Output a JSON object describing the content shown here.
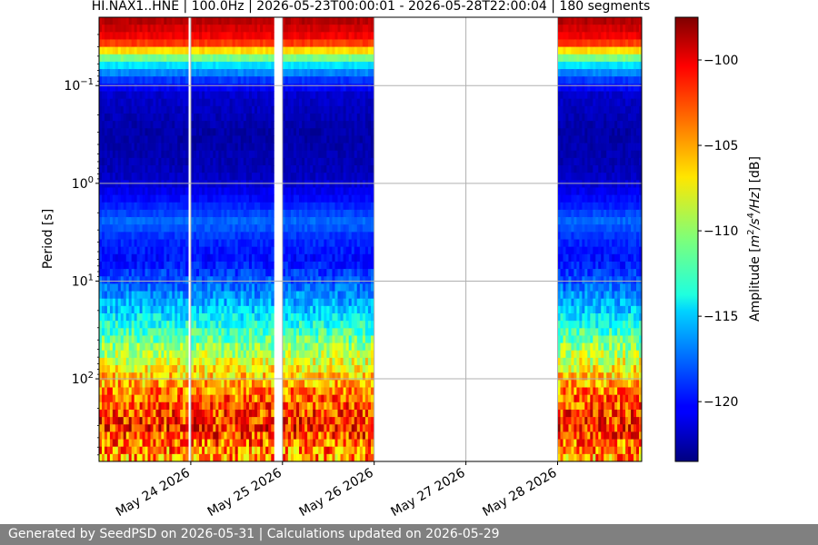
{
  "chart_data": {
    "type": "heatmap",
    "title": "HI.NAX1..HNE | 100.0Hz | 2026-05-23T00:00:01 - 2026-05-28T22:00:04 | 180 segments",
    "ylabel": "Period [s]",
    "colorbar_label_parts": [
      "Amplitude [",
      "m",
      "2",
      "/s",
      "4",
      "/",
      "Hz",
      "] [dB]"
    ],
    "x_start": "2026-05-23",
    "x_end": "2026-05-28T22:00:04",
    "xticks": [
      {
        "date": "2026-05-24",
        "label": "May 24 2026"
      },
      {
        "date": "2026-05-25",
        "label": "May 25 2026"
      },
      {
        "date": "2026-05-26",
        "label": "May 26 2026"
      },
      {
        "date": "2026-05-27",
        "label": "May 27 2026"
      },
      {
        "date": "2026-05-28",
        "label": "May 28 2026"
      }
    ],
    "y_scale": "log",
    "y_inverted": true,
    "ylim": [
      0.02,
      700
    ],
    "yticks": [
      {
        "value": 0.1,
        "base": "10",
        "exp": "−1"
      },
      {
        "value": 1,
        "base": "10",
        "exp": "0"
      },
      {
        "value": 10,
        "base": "10",
        "exp": "1"
      },
      {
        "value": 100,
        "base": "10",
        "exp": "2"
      }
    ],
    "colorbar_range": [
      -123.5,
      -97.5
    ],
    "colorbar_ticks": [
      -100,
      -105,
      -110,
      -115,
      -120
    ],
    "colormap": "jet",
    "grid": true,
    "data_coverage": [
      {
        "start": "2026-05-23T00:00:00",
        "end": "2026-05-23T23:20:00"
      },
      {
        "start": "2026-05-24T00:00:00",
        "end": "2026-05-24T21:45:00"
      },
      {
        "start": "2026-05-25T00:00:00",
        "end": "2026-05-25T23:50:00"
      },
      {
        "start": "2026-05-28T00:00:00",
        "end": "2026-05-28T22:00:04"
      }
    ],
    "amplitude_profile": [
      {
        "period": 0.02,
        "db": -98.5
      },
      {
        "period": 0.035,
        "db": -101
      },
      {
        "period": 0.045,
        "db": -107
      },
      {
        "period": 0.06,
        "db": -114
      },
      {
        "period": 0.08,
        "db": -118
      },
      {
        "period": 0.12,
        "db": -121.5
      },
      {
        "period": 0.3,
        "db": -122.5
      },
      {
        "period": 0.8,
        "db": -122
      },
      {
        "period": 1.5,
        "db": -120
      },
      {
        "period": 2.5,
        "db": -117.5
      },
      {
        "period": 3.5,
        "db": -119
      },
      {
        "period": 6,
        "db": -120
      },
      {
        "period": 10,
        "db": -118
      },
      {
        "period": 20,
        "db": -115
      },
      {
        "period": 40,
        "db": -111
      },
      {
        "period": 80,
        "db": -107
      },
      {
        "period": 150,
        "db": -103.5
      },
      {
        "period": 300,
        "db": -101.5
      },
      {
        "period": 700,
        "db": -105
      }
    ]
  },
  "footer": {
    "text": "Generated by SeedPSD on 2026-05-31 | Calculations updated on 2026-05-29"
  }
}
